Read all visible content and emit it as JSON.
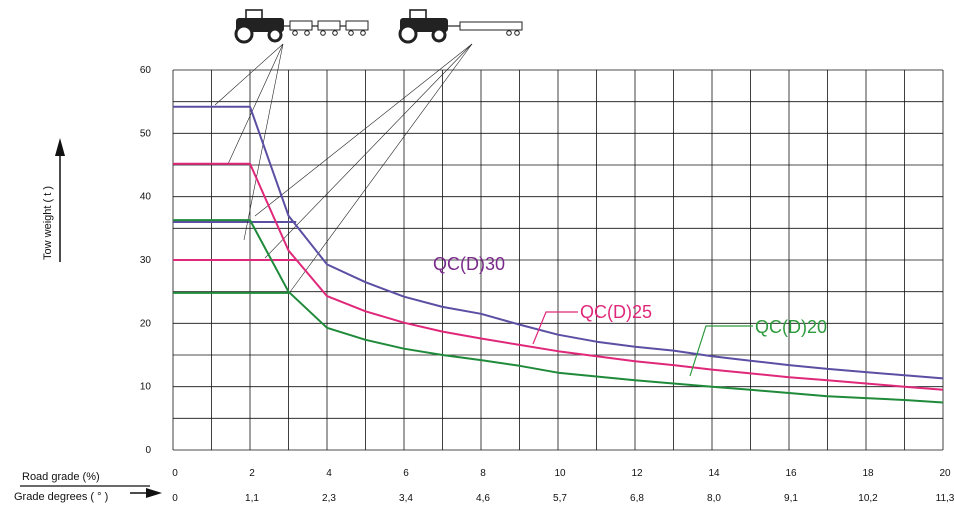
{
  "chart_data": {
    "type": "line",
    "ylabel": "Tow weight ( t )",
    "xlabel_primary": "Road grade   (%)",
    "xlabel_secondary": "Grade degrees   ( ° )",
    "xlim": [
      0,
      20
    ],
    "ylim": [
      0,
      60
    ],
    "x_ticks": [
      "0",
      "2",
      "4",
      "6",
      "8",
      "10",
      "12",
      "14",
      "16",
      "18",
      "20"
    ],
    "x_ticks_degrees": [
      "0",
      "1,1",
      "2,3",
      "3,4",
      "4,6",
      "5,7",
      "6,8",
      "8,0",
      "9,1",
      "10,2",
      "11,3"
    ],
    "y_ticks": [
      "0",
      "10",
      "20",
      "30",
      "40",
      "50",
      "60"
    ],
    "grid": true,
    "series": [
      {
        "name": "QC(D)30",
        "color": "#5a4fa3",
        "label_color": "#7a2a8a",
        "points": [
          [
            0,
            54.2
          ],
          [
            2,
            54.2
          ],
          [
            3,
            37
          ],
          [
            4,
            29.3
          ],
          [
            5,
            26.5
          ],
          [
            6,
            24.2
          ],
          [
            7,
            22.6
          ],
          [
            8,
            21.5
          ],
          [
            9,
            19.8
          ],
          [
            10,
            18.2
          ],
          [
            11,
            17.1
          ],
          [
            12,
            16.3
          ],
          [
            13,
            15.7
          ],
          [
            14,
            14.8
          ],
          [
            15,
            14.1
          ],
          [
            16,
            13.4
          ],
          [
            17,
            12.8
          ],
          [
            18,
            12.3
          ],
          [
            19,
            11.8
          ],
          [
            20,
            11.3
          ]
        ]
      },
      {
        "name": "QC(D)25",
        "color": "#e0287a",
        "label_color": "#e0287a",
        "points": [
          [
            0,
            45.2
          ],
          [
            2,
            45.2
          ],
          [
            3,
            31.5
          ],
          [
            4,
            24.3
          ],
          [
            5,
            21.9
          ],
          [
            6,
            20.1
          ],
          [
            7,
            18.7
          ],
          [
            8,
            17.6
          ],
          [
            9,
            16.6
          ],
          [
            10,
            15.6
          ],
          [
            11,
            14.8
          ],
          [
            12,
            14.0
          ],
          [
            13,
            13.4
          ],
          [
            14,
            12.7
          ],
          [
            15,
            12.1
          ],
          [
            16,
            11.5
          ],
          [
            17,
            11.0
          ],
          [
            18,
            10.5
          ],
          [
            19,
            10.0
          ],
          [
            20,
            9.5
          ]
        ]
      },
      {
        "name": "QC(D)20",
        "color": "#1f8a3a",
        "label_color": "#2e9a3e",
        "points": [
          [
            0,
            36.3
          ],
          [
            2,
            36.3
          ],
          [
            3,
            25
          ],
          [
            4,
            19.3
          ],
          [
            5,
            17.4
          ],
          [
            6,
            16.0
          ],
          [
            7,
            15.0
          ],
          [
            8,
            14.2
          ],
          [
            9,
            13.3
          ],
          [
            10,
            12.2
          ],
          [
            11,
            11.6
          ],
          [
            12,
            11.0
          ],
          [
            13,
            10.5
          ],
          [
            14,
            10.0
          ],
          [
            15,
            9.5
          ],
          [
            16,
            9.0
          ],
          [
            17,
            8.5
          ],
          [
            18,
            8.2
          ],
          [
            19,
            7.9
          ],
          [
            20,
            7.5
          ]
        ]
      }
    ],
    "reference_lines": [
      {
        "color": "#5a4fa3",
        "y": 36,
        "x_end": 3.2
      },
      {
        "color": "#e0287a",
        "y": 30,
        "x_end": 3.2
      },
      {
        "color": "#1f8a3a",
        "y": 24.8,
        "x_end": 3.0
      }
    ],
    "pictograms": [
      "tractor-with-three-trailers-icon",
      "tractor-with-platform-trailer-icon"
    ]
  }
}
